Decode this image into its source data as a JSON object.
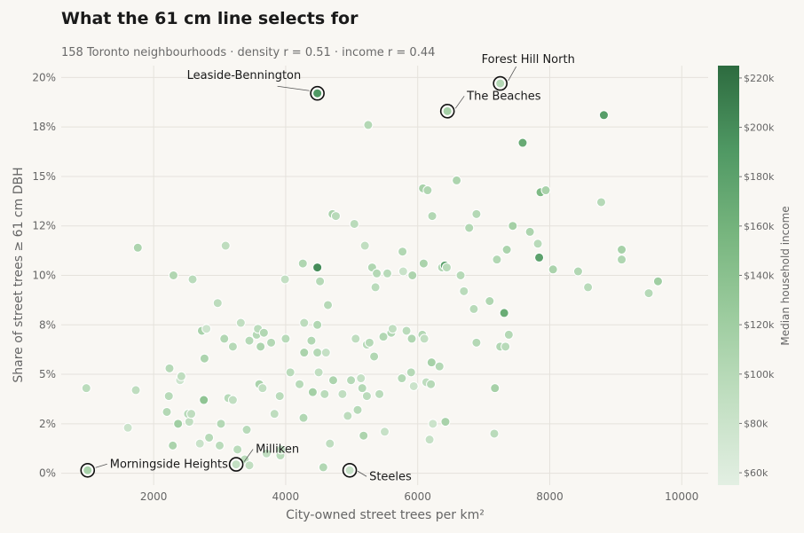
{
  "title": "What the 61 cm line selects for",
  "subtitle": "158 Toronto neighbourhoods · density r = 0.51 · income r = 0.44",
  "chart_data": {
    "type": "scatter",
    "xlabel": "City-owned street trees per km²",
    "ylabel": "Share of street trees ≥ 61 cm DBH",
    "xlim": [
      600,
      10400
    ],
    "ylim": [
      -0.6,
      20.6
    ],
    "x_ticks": [
      2000,
      4000,
      6000,
      8000,
      10000
    ],
    "y_ticks": [
      0,
      2.5,
      5,
      7.5,
      10,
      12.5,
      15,
      17.5,
      20
    ],
    "y_tick_labels": [
      "0%",
      "2%",
      "5%",
      "8%",
      "10%",
      "12%",
      "15%",
      "18%",
      "20%"
    ],
    "grid": true,
    "colorbar": {
      "label": "Median household income",
      "min": 55000,
      "max": 225000,
      "ticks": [
        60000,
        80000,
        100000,
        120000,
        140000,
        160000,
        180000,
        200000,
        220000
      ],
      "tick_labels": [
        "$60k",
        "$80k",
        "$100k",
        "$120k",
        "$140k",
        "$160k",
        "$180k",
        "$200k",
        "$220k"
      ],
      "colors": [
        "#e3efe3",
        "#c2dfc2",
        "#9dcc9f",
        "#77b57e",
        "#4f9863",
        "#2d6b3f"
      ]
    },
    "annotations": [
      {
        "label": "Leaside-Bennington",
        "x": 4480,
        "y": 19.2,
        "income": 190000
      },
      {
        "label": "Forest Hill North",
        "x": 7250,
        "y": 19.7,
        "income": 102000
      },
      {
        "label": "The Beaches",
        "x": 6450,
        "y": 18.3,
        "income": 115000
      },
      {
        "label": "Morningside Heights",
        "x": 1000,
        "y": 0.15,
        "income": 112000
      },
      {
        "label": "Milliken",
        "x": 3250,
        "y": 0.45,
        "income": 88000
      },
      {
        "label": "Steeles",
        "x": 4970,
        "y": 0.15,
        "income": 84000
      }
    ],
    "points": [
      [
        980,
        4.3,
        95000
      ],
      [
        1610,
        2.3,
        80000
      ],
      [
        1730,
        4.2,
        92000
      ],
      [
        1760,
        11.4,
        108000
      ],
      [
        2200,
        3.1,
        102000
      ],
      [
        2230,
        3.9,
        98000
      ],
      [
        2240,
        5.3,
        100000
      ],
      [
        2290,
        1.4,
        110000
      ],
      [
        2300,
        10.0,
        105000
      ],
      [
        2370,
        2.5,
        120000
      ],
      [
        2400,
        4.7,
        78000
      ],
      [
        2420,
        4.9,
        92000
      ],
      [
        2520,
        3.0,
        98000
      ],
      [
        2540,
        2.6,
        90000
      ],
      [
        2570,
        3.0,
        92000
      ],
      [
        2590,
        9.8,
        96000
      ],
      [
        2700,
        1.5,
        82000
      ],
      [
        2730,
        7.2,
        112000
      ],
      [
        2760,
        3.7,
        135000
      ],
      [
        2770,
        5.8,
        108000
      ],
      [
        2800,
        7.3,
        78000
      ],
      [
        2840,
        1.8,
        100000
      ],
      [
        2970,
        8.6,
        94000
      ],
      [
        3000,
        1.4,
        96000
      ],
      [
        3020,
        2.5,
        102000
      ],
      [
        3070,
        6.8,
        104000
      ],
      [
        3090,
        11.5,
        92000
      ],
      [
        3130,
        3.8,
        98000
      ],
      [
        3200,
        3.7,
        90000
      ],
      [
        3200,
        6.4,
        100000
      ],
      [
        3270,
        1.2,
        96000
      ],
      [
        3320,
        7.6,
        90000
      ],
      [
        3380,
        0.7,
        95000
      ],
      [
        3410,
        2.2,
        98000
      ],
      [
        3450,
        6.7,
        100000
      ],
      [
        3450,
        0.4,
        90000
      ],
      [
        3560,
        7.0,
        100000
      ],
      [
        3580,
        7.3,
        95000
      ],
      [
        3600,
        4.5,
        110000
      ],
      [
        3620,
        6.4,
        108000
      ],
      [
        3650,
        4.3,
        90000
      ],
      [
        3670,
        7.1,
        104000
      ],
      [
        3710,
        1.0,
        90000
      ],
      [
        3780,
        6.6,
        102000
      ],
      [
        3830,
        3.0,
        92000
      ],
      [
        3910,
        3.9,
        96000
      ],
      [
        3920,
        0.9,
        98000
      ],
      [
        3930,
        1.2,
        88000
      ],
      [
        3990,
        9.8,
        88000
      ],
      [
        4000,
        6.8,
        98000
      ],
      [
        4070,
        5.1,
        96000
      ],
      [
        4210,
        4.5,
        98000
      ],
      [
        4260,
        10.6,
        106000
      ],
      [
        4270,
        2.8,
        104000
      ],
      [
        4280,
        6.1,
        110000
      ],
      [
        4280,
        7.6,
        94000
      ],
      [
        4390,
        6.7,
        104000
      ],
      [
        4410,
        4.1,
        116000
      ],
      [
        4480,
        7.5,
        104000
      ],
      [
        4480,
        6.1,
        102000
      ],
      [
        4480,
        10.4,
        200000
      ],
      [
        4500,
        5.1,
        90000
      ],
      [
        4520,
        9.7,
        100000
      ],
      [
        4570,
        0.3,
        104000
      ],
      [
        4590,
        4.0,
        96000
      ],
      [
        4610,
        6.1,
        86000
      ],
      [
        4640,
        8.5,
        100000
      ],
      [
        4670,
        1.5,
        92000
      ],
      [
        4710,
        13.1,
        112000
      ],
      [
        4720,
        4.7,
        108000
      ],
      [
        4760,
        13.0,
        98000
      ],
      [
        4860,
        4.0,
        90000
      ],
      [
        4940,
        2.9,
        94000
      ],
      [
        4990,
        4.7,
        100000
      ],
      [
        5040,
        12.6,
        96000
      ],
      [
        5060,
        6.8,
        92000
      ],
      [
        5090,
        3.2,
        100000
      ],
      [
        5140,
        4.8,
        86000
      ],
      [
        5160,
        4.3,
        102000
      ],
      [
        5180,
        1.9,
        108000
      ],
      [
        5200,
        11.5,
        90000
      ],
      [
        5230,
        3.9,
        96000
      ],
      [
        5230,
        6.5,
        98000
      ],
      [
        5250,
        17.6,
        102000
      ],
      [
        5270,
        6.6,
        100000
      ],
      [
        5310,
        10.4,
        106000
      ],
      [
        5340,
        5.9,
        104000
      ],
      [
        5360,
        9.4,
        96000
      ],
      [
        5380,
        10.1,
        102000
      ],
      [
        5420,
        4.0,
        96000
      ],
      [
        5480,
        6.9,
        104000
      ],
      [
        5500,
        2.1,
        84000
      ],
      [
        5540,
        10.1,
        98000
      ],
      [
        5600,
        7.1,
        104000
      ],
      [
        5620,
        7.3,
        90000
      ],
      [
        5760,
        4.8,
        102000
      ],
      [
        5770,
        11.2,
        104000
      ],
      [
        5780,
        10.2,
        82000
      ],
      [
        5830,
        7.2,
        96000
      ],
      [
        5900,
        5.1,
        100000
      ],
      [
        5910,
        6.8,
        106000
      ],
      [
        5920,
        10.0,
        108000
      ],
      [
        5940,
        4.4,
        80000
      ],
      [
        6070,
        7.0,
        102000
      ],
      [
        6080,
        14.4,
        112000
      ],
      [
        6090,
        10.6,
        110000
      ],
      [
        6100,
        6.8,
        90000
      ],
      [
        6130,
        4.6,
        92000
      ],
      [
        6150,
        14.3,
        106000
      ],
      [
        6180,
        1.7,
        86000
      ],
      [
        6200,
        4.5,
        100000
      ],
      [
        6210,
        5.6,
        114000
      ],
      [
        6220,
        13.0,
        104000
      ],
      [
        6230,
        2.5,
        80000
      ],
      [
        6330,
        5.4,
        102000
      ],
      [
        6370,
        10.4,
        104000
      ],
      [
        6410,
        10.5,
        182000
      ],
      [
        6420,
        2.6,
        112000
      ],
      [
        6440,
        10.4,
        98000
      ],
      [
        6590,
        14.8,
        108000
      ],
      [
        6650,
        10.0,
        100000
      ],
      [
        6700,
        9.2,
        96000
      ],
      [
        6780,
        12.4,
        104000
      ],
      [
        6850,
        8.3,
        98000
      ],
      [
        6890,
        13.1,
        102000
      ],
      [
        6890,
        6.6,
        102000
      ],
      [
        7090,
        8.7,
        106000
      ],
      [
        7160,
        2.0,
        96000
      ],
      [
        7170,
        4.3,
        114000
      ],
      [
        7200,
        10.8,
        104000
      ],
      [
        7250,
        6.4,
        104000
      ],
      [
        7310,
        8.1,
        168000
      ],
      [
        7330,
        6.4,
        98000
      ],
      [
        7350,
        11.3,
        110000
      ],
      [
        7380,
        7.0,
        102000
      ],
      [
        7440,
        12.5,
        116000
      ],
      [
        7590,
        16.7,
        170000
      ],
      [
        7700,
        12.2,
        108000
      ],
      [
        7820,
        11.6,
        98000
      ],
      [
        7840,
        10.9,
        180000
      ],
      [
        7860,
        14.2,
        150000
      ],
      [
        7940,
        14.3,
        112000
      ],
      [
        8050,
        10.3,
        110000
      ],
      [
        8430,
        10.2,
        104000
      ],
      [
        8580,
        9.4,
        98000
      ],
      [
        8780,
        13.7,
        100000
      ],
      [
        8820,
        18.1,
        184000
      ],
      [
        9090,
        10.8,
        106000
      ],
      [
        9090,
        11.3,
        114000
      ],
      [
        9500,
        9.1,
        100000
      ],
      [
        9640,
        9.7,
        120000
      ]
    ]
  }
}
